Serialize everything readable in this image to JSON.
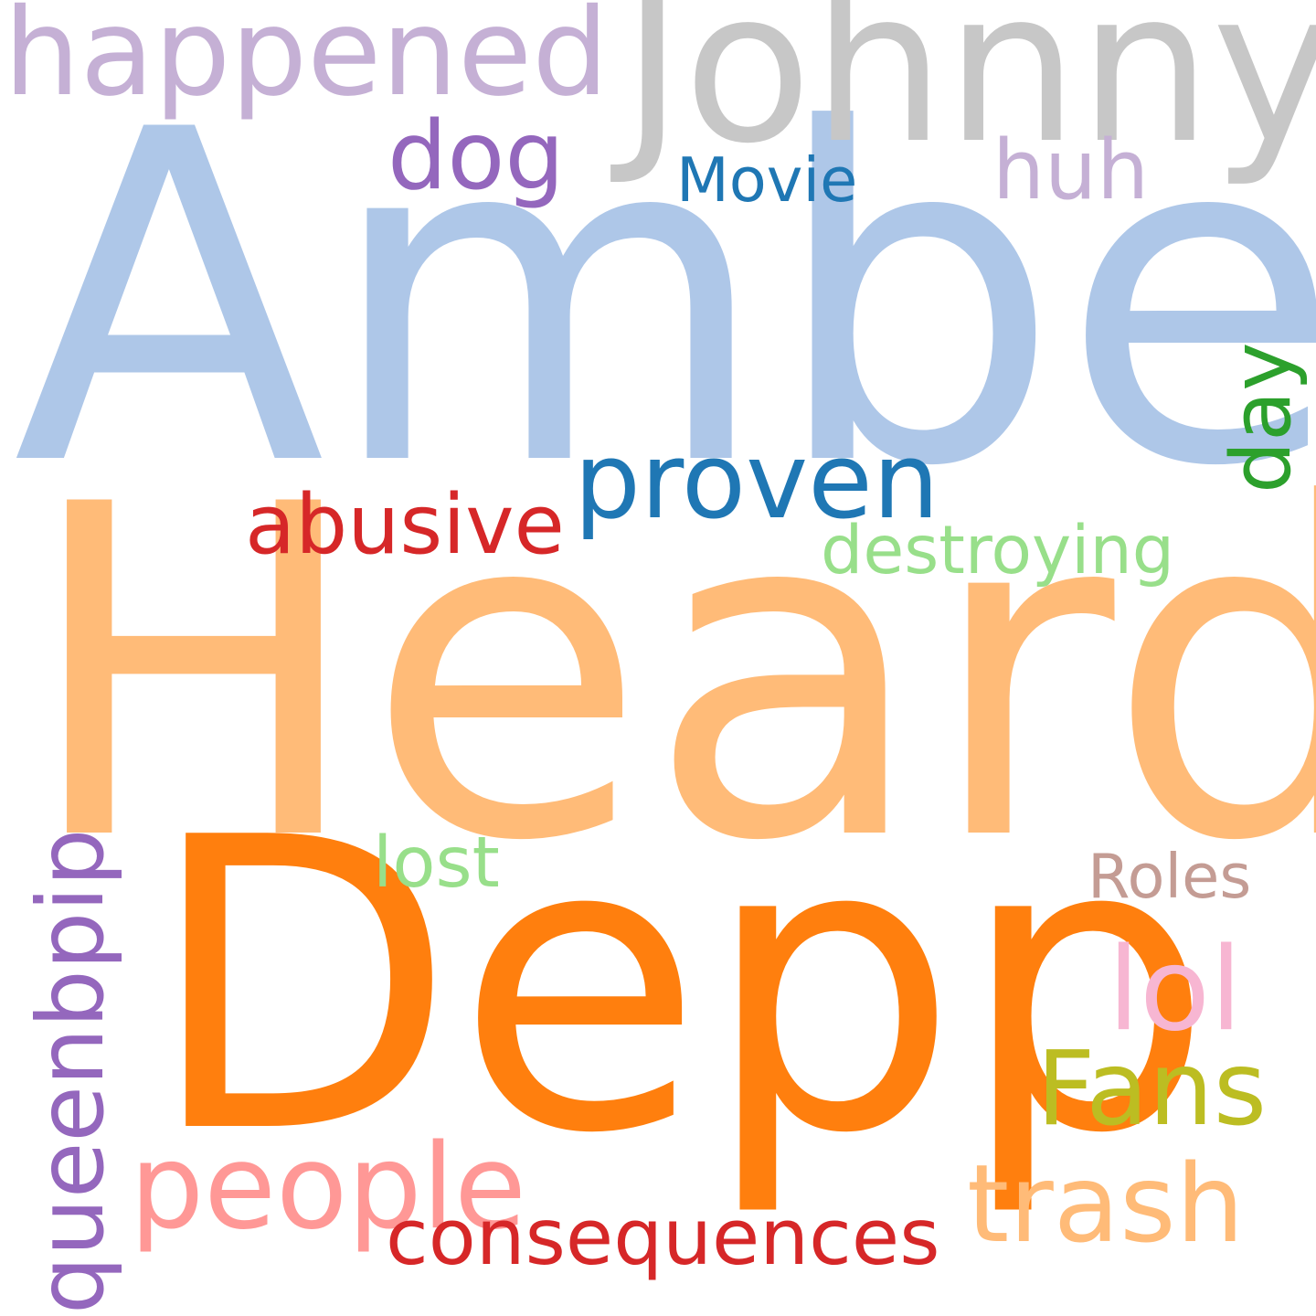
{
  "words": [
    {
      "id": "amber",
      "text": "Amber",
      "color": "#aec7e8"
    },
    {
      "id": "heard",
      "text": "Heard",
      "color": "#ffbb78"
    },
    {
      "id": "depp",
      "text": "Depp",
      "color": "#ff7f0e"
    },
    {
      "id": "johnny",
      "text": "Johnny",
      "color": "#c7c7c7"
    },
    {
      "id": "happened",
      "text": "happened",
      "color": "#c5b0d5"
    },
    {
      "id": "proven",
      "text": "proven",
      "color": "#1f77b4"
    },
    {
      "id": "people",
      "text": "people",
      "color": "#ff9896"
    },
    {
      "id": "consequences",
      "text": "consequences",
      "color": "#d62728"
    },
    {
      "id": "trash",
      "text": "trash",
      "color": "#ffbb78"
    },
    {
      "id": "fans",
      "text": "Fans",
      "color": "#bcbd22"
    },
    {
      "id": "lol",
      "text": "lol",
      "color": "#f7b6d2"
    },
    {
      "id": "queenbpip",
      "text": "queenbpip",
      "color": "#9467bd"
    },
    {
      "id": "abusive",
      "text": "abusive",
      "color": "#d62728"
    },
    {
      "id": "dog",
      "text": "dog",
      "color": "#9467bd"
    },
    {
      "id": "huh",
      "text": "huh",
      "color": "#c5b0d5"
    },
    {
      "id": "destroying",
      "text": "destroying",
      "color": "#98df8a"
    },
    {
      "id": "day",
      "text": "day",
      "color": "#2ca02c"
    },
    {
      "id": "movie",
      "text": "Movie",
      "color": "#1f77b4"
    },
    {
      "id": "lost",
      "text": "lost",
      "color": "#98df8a"
    },
    {
      "id": "roles",
      "text": "Roles",
      "color": "#c49c94"
    }
  ]
}
